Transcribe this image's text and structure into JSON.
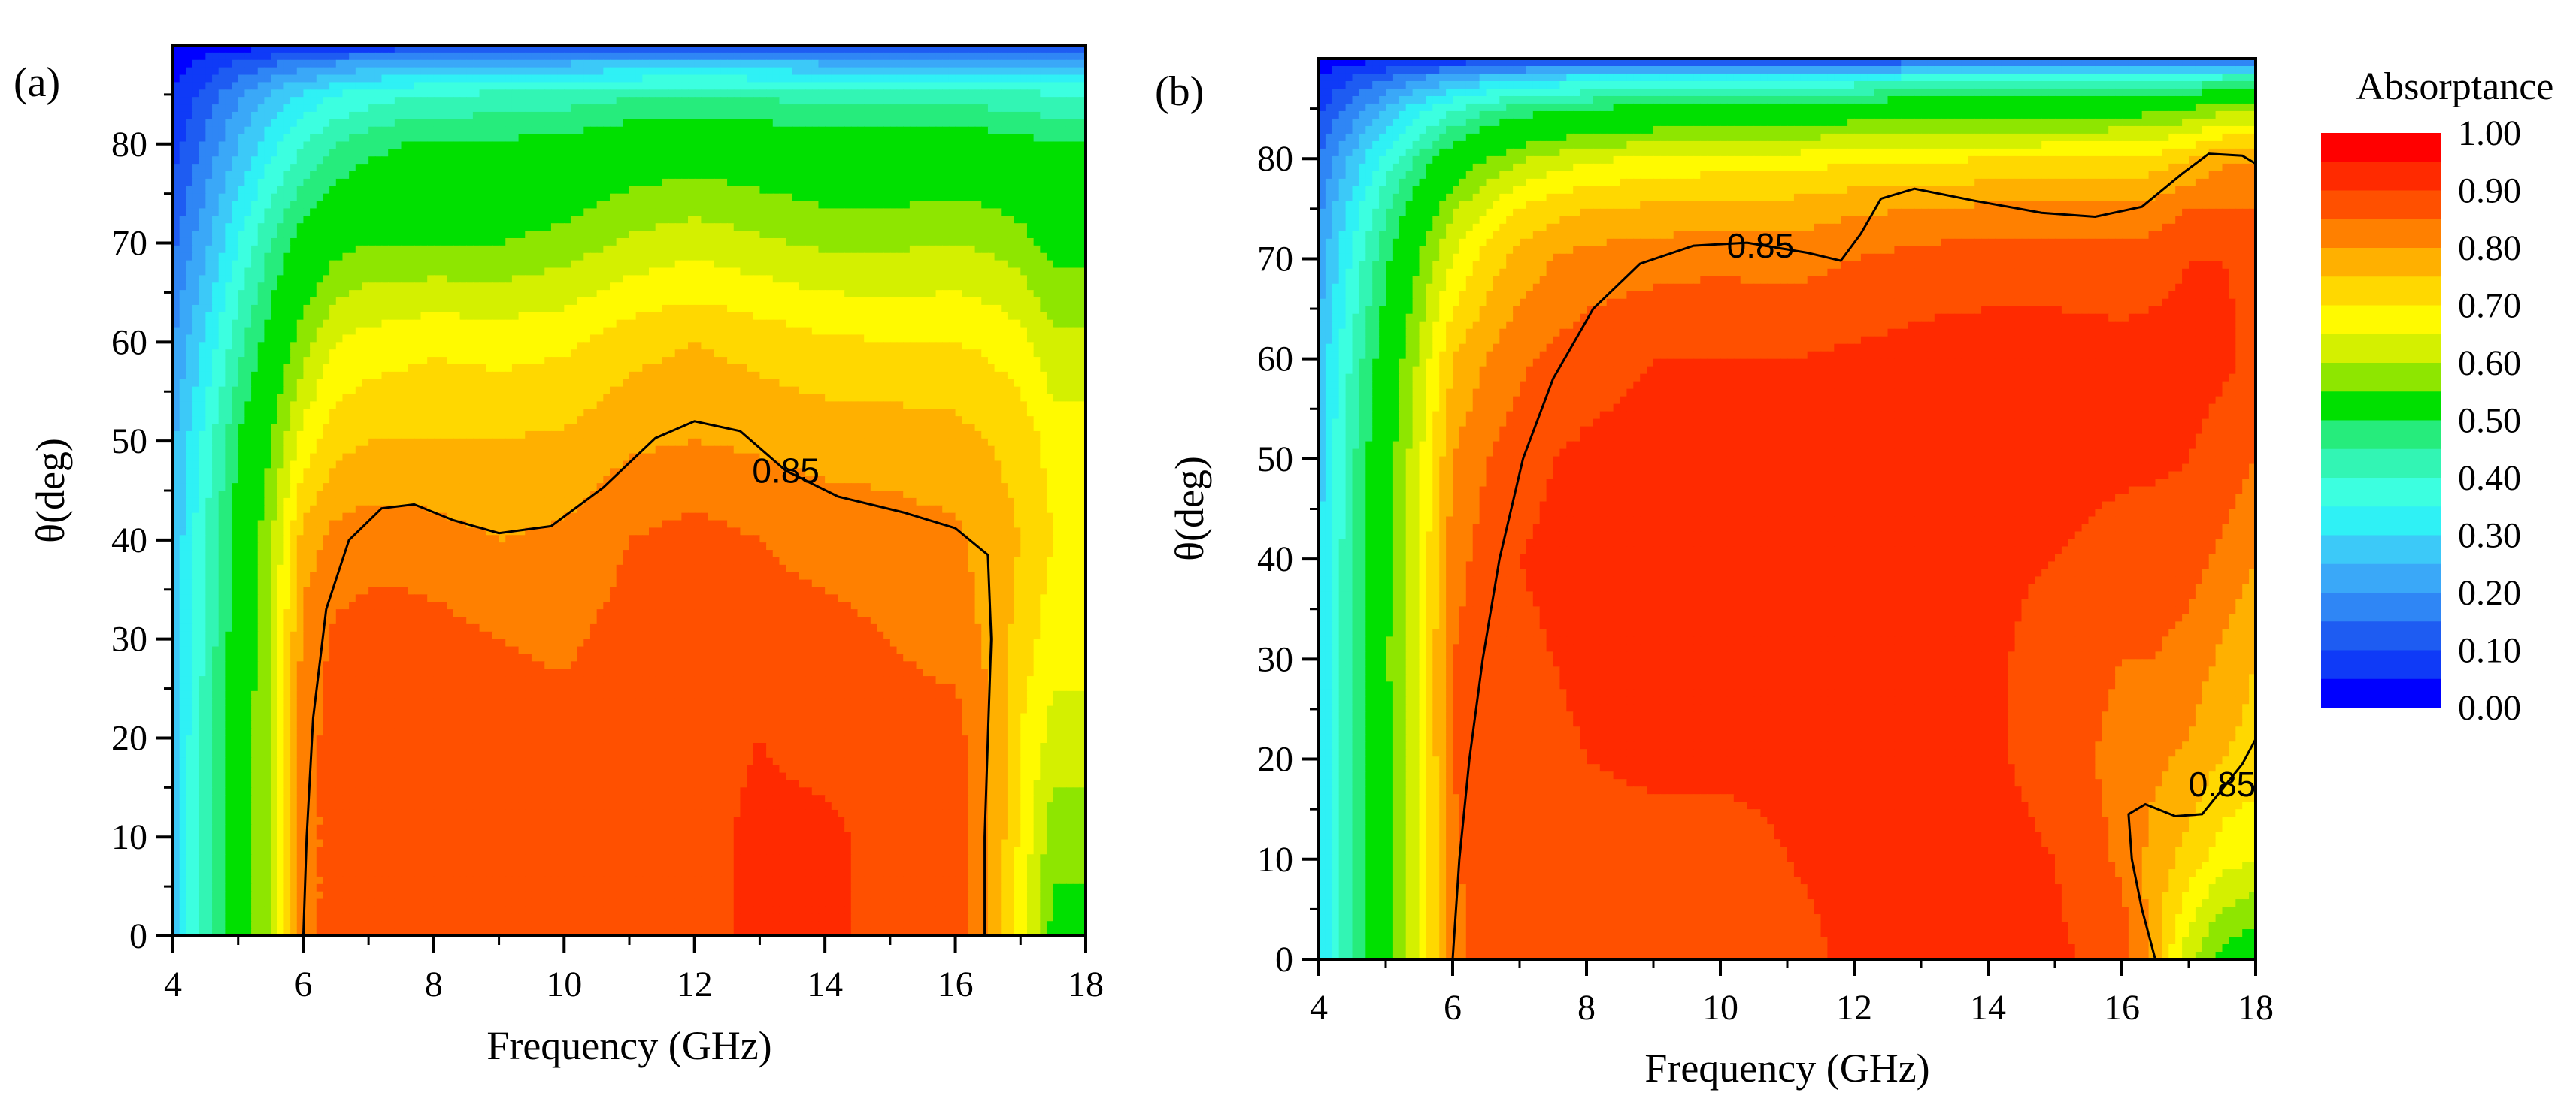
{
  "chart_data": [
    {
      "type": "heatmap",
      "panel_label": "(a)",
      "xlabel": "Frequency (GHz)",
      "ylabel": "θ(deg)",
      "xlim": [
        4,
        18
      ],
      "ylim": [
        0,
        90
      ],
      "xticks": [
        4,
        6,
        8,
        10,
        12,
        14,
        16,
        18
      ],
      "xtick_labels": [
        "4",
        "6",
        "8",
        "10",
        "12",
        "14",
        "16",
        "18"
      ],
      "yticks": [
        0,
        10,
        20,
        30,
        40,
        50,
        60,
        70,
        80
      ],
      "ytick_labels": [
        "0",
        "10",
        "20",
        "30",
        "40",
        "50",
        "60",
        "70",
        "80"
      ],
      "contour_level": 0.85,
      "contour_label": "0.85",
      "contour_label_pos": [
        13.4,
        47
      ],
      "contour_line": [
        [
          6.0,
          0
        ],
        [
          6.05,
          10
        ],
        [
          6.15,
          22
        ],
        [
          6.35,
          33
        ],
        [
          6.7,
          40
        ],
        [
          7.2,
          43.2
        ],
        [
          7.7,
          43.6
        ],
        [
          8.3,
          42
        ],
        [
          9.0,
          40.7
        ],
        [
          9.8,
          41.4
        ],
        [
          10.6,
          45.3
        ],
        [
          11.4,
          50.3
        ],
        [
          12.0,
          52
        ],
        [
          12.7,
          51
        ],
        [
          13.4,
          47
        ],
        [
          14.2,
          44.4
        ],
        [
          15.2,
          42.8
        ],
        [
          16.0,
          41.2
        ],
        [
          16.5,
          38.5
        ],
        [
          16.55,
          30
        ],
        [
          16.5,
          20
        ],
        [
          16.45,
          10
        ],
        [
          16.45,
          0
        ]
      ],
      "field": {
        "xs": [
          4,
          4.5,
          5,
          5.5,
          6,
          6.5,
          7,
          7.5,
          8,
          9,
          10,
          11,
          12,
          13,
          14,
          15,
          16,
          16.5,
          17,
          17.5,
          18
        ],
        "ys": [
          0,
          10,
          20,
          30,
          40,
          50,
          60,
          70,
          80,
          85,
          88,
          90
        ],
        "rows": [
          [
            0.28,
            0.42,
            0.55,
            0.66,
            0.88,
            0.92,
            0.92,
            0.92,
            0.92,
            0.92,
            0.92,
            0.92,
            0.92,
            0.97,
            0.97,
            0.92,
            0.92,
            0.86,
            0.72,
            0.58,
            0.58
          ],
          [
            0.28,
            0.42,
            0.55,
            0.66,
            0.88,
            0.92,
            0.92,
            0.92,
            0.92,
            0.92,
            0.92,
            0.92,
            0.92,
            0.97,
            0.97,
            0.92,
            0.92,
            0.86,
            0.74,
            0.62,
            0.62
          ],
          [
            0.28,
            0.42,
            0.55,
            0.66,
            0.88,
            0.92,
            0.92,
            0.92,
            0.92,
            0.92,
            0.92,
            0.92,
            0.92,
            0.95,
            0.92,
            0.92,
            0.92,
            0.86,
            0.75,
            0.68,
            0.68
          ],
          [
            0.27,
            0.41,
            0.54,
            0.65,
            0.87,
            0.91,
            0.92,
            0.92,
            0.92,
            0.9,
            0.89,
            0.92,
            0.92,
            0.92,
            0.92,
            0.9,
            0.88,
            0.84,
            0.78,
            0.72,
            0.72
          ],
          [
            0.26,
            0.4,
            0.53,
            0.64,
            0.82,
            0.87,
            0.88,
            0.88,
            0.87,
            0.85,
            0.86,
            0.9,
            0.92,
            0.9,
            0.88,
            0.87,
            0.86,
            0.83,
            0.8,
            0.75,
            0.75
          ],
          [
            0.24,
            0.37,
            0.5,
            0.6,
            0.72,
            0.78,
            0.8,
            0.8,
            0.8,
            0.8,
            0.81,
            0.84,
            0.85,
            0.84,
            0.83,
            0.83,
            0.82,
            0.8,
            0.78,
            0.73,
            0.73
          ],
          [
            0.2,
            0.31,
            0.43,
            0.53,
            0.63,
            0.7,
            0.72,
            0.73,
            0.74,
            0.73,
            0.74,
            0.78,
            0.8,
            0.78,
            0.76,
            0.75,
            0.75,
            0.74,
            0.72,
            0.66,
            0.66
          ],
          [
            0.14,
            0.24,
            0.35,
            0.45,
            0.53,
            0.58,
            0.6,
            0.6,
            0.6,
            0.6,
            0.62,
            0.66,
            0.68,
            0.66,
            0.64,
            0.64,
            0.65,
            0.64,
            0.62,
            0.58,
            0.58
          ],
          [
            0.08,
            0.16,
            0.25,
            0.33,
            0.4,
            0.45,
            0.48,
            0.5,
            0.51,
            0.51,
            0.52,
            0.55,
            0.56,
            0.55,
            0.53,
            0.53,
            0.54,
            0.53,
            0.52,
            0.5,
            0.5
          ],
          [
            0.05,
            0.12,
            0.19,
            0.26,
            0.31,
            0.35,
            0.37,
            0.39,
            0.4,
            0.41,
            0.42,
            0.44,
            0.45,
            0.44,
            0.43,
            0.43,
            0.43,
            0.42,
            0.42,
            0.4,
            0.4
          ],
          [
            0.03,
            0.07,
            0.11,
            0.15,
            0.18,
            0.21,
            0.23,
            0.24,
            0.25,
            0.25,
            0.26,
            0.27,
            0.28,
            0.27,
            0.26,
            0.26,
            0.26,
            0.26,
            0.25,
            0.24,
            0.24
          ],
          [
            0.01,
            0.02,
            0.03,
            0.04,
            0.05,
            0.06,
            0.06,
            0.07,
            0.07,
            0.07,
            0.08,
            0.08,
            0.08,
            0.08,
            0.08,
            0.08,
            0.08,
            0.07,
            0.07,
            0.07,
            0.07
          ]
        ]
      }
    },
    {
      "type": "heatmap",
      "panel_label": "(b)",
      "xlabel": "Frequency (GHz)",
      "ylabel": "θ(deg)",
      "xlim": [
        4,
        18
      ],
      "ylim": [
        0,
        90
      ],
      "xticks": [
        4,
        6,
        8,
        10,
        12,
        14,
        16,
        18
      ],
      "xtick_labels": [
        "4",
        "6",
        "8",
        "10",
        "12",
        "14",
        "16",
        "18"
      ],
      "yticks": [
        0,
        10,
        20,
        30,
        40,
        50,
        60,
        70,
        80
      ],
      "ytick_labels": [
        "0",
        "10",
        "20",
        "30",
        "40",
        "50",
        "60",
        "70",
        "80"
      ],
      "contour_level": 0.85,
      "contour_label": "0.85",
      "contour_label_pos": [
        10.6,
        71.3
      ],
      "contour_label_2": "0.85",
      "contour_label_2_pos": [
        17.5,
        17.5
      ],
      "contour_line": [
        [
          6.0,
          0
        ],
        [
          6.1,
          10
        ],
        [
          6.25,
          20
        ],
        [
          6.45,
          30
        ],
        [
          6.7,
          40
        ],
        [
          7.05,
          50
        ],
        [
          7.5,
          58
        ],
        [
          8.1,
          65
        ],
        [
          8.8,
          69.5
        ],
        [
          9.6,
          71.3
        ],
        [
          10.4,
          71.6
        ],
        [
          11.3,
          70.6
        ],
        [
          11.8,
          69.8
        ],
        [
          12.1,
          72.5
        ],
        [
          12.4,
          76
        ],
        [
          12.9,
          77
        ],
        [
          13.8,
          75.8
        ],
        [
          14.8,
          74.6
        ],
        [
          15.6,
          74.2
        ],
        [
          16.3,
          75.2
        ],
        [
          16.9,
          78.5
        ],
        [
          17.3,
          80.5
        ],
        [
          17.8,
          80.3
        ],
        [
          18.0,
          79.5
        ]
      ],
      "contour_line_2": [
        [
          16.5,
          0
        ],
        [
          16.3,
          5
        ],
        [
          16.15,
          10
        ],
        [
          16.1,
          14.5
        ],
        [
          16.35,
          15.5
        ],
        [
          16.8,
          14.3
        ],
        [
          17.2,
          14.5
        ],
        [
          17.5,
          17
        ],
        [
          17.8,
          19.5
        ],
        [
          18.0,
          22
        ]
      ],
      "field": {
        "xs": [
          4,
          4.5,
          5,
          5.5,
          6,
          6.5,
          7,
          7.5,
          8,
          9,
          10,
          11,
          12,
          13,
          14,
          15,
          16,
          16.5,
          17,
          17.5,
          18
        ],
        "ys": [
          0,
          10,
          20,
          30,
          40,
          50,
          60,
          70,
          75,
          80,
          85,
          88,
          90
        ],
        "rows": [
          [
            0.3,
            0.46,
            0.58,
            0.7,
            0.88,
            0.93,
            0.93,
            0.93,
            0.93,
            0.93,
            0.93,
            0.93,
            0.96,
            0.97,
            0.97,
            0.96,
            0.93,
            0.82,
            0.66,
            0.58,
            0.55
          ],
          [
            0.3,
            0.46,
            0.58,
            0.7,
            0.89,
            0.93,
            0.93,
            0.93,
            0.93,
            0.93,
            0.93,
            0.95,
            0.97,
            0.97,
            0.97,
            0.95,
            0.89,
            0.83,
            0.78,
            0.72,
            0.7
          ],
          [
            0.3,
            0.46,
            0.58,
            0.7,
            0.9,
            0.93,
            0.93,
            0.94,
            0.95,
            0.96,
            0.96,
            0.96,
            0.97,
            0.97,
            0.96,
            0.93,
            0.88,
            0.86,
            0.84,
            0.8,
            0.78
          ],
          [
            0.3,
            0.46,
            0.59,
            0.71,
            0.9,
            0.93,
            0.94,
            0.95,
            0.96,
            0.97,
            0.97,
            0.97,
            0.97,
            0.97,
            0.96,
            0.93,
            0.9,
            0.9,
            0.88,
            0.84,
            0.8
          ],
          [
            0.29,
            0.45,
            0.58,
            0.7,
            0.88,
            0.92,
            0.95,
            0.96,
            0.97,
            0.97,
            0.97,
            0.97,
            0.97,
            0.97,
            0.96,
            0.95,
            0.93,
            0.92,
            0.92,
            0.89,
            0.85
          ],
          [
            0.28,
            0.44,
            0.57,
            0.69,
            0.85,
            0.9,
            0.93,
            0.95,
            0.96,
            0.97,
            0.97,
            0.97,
            0.97,
            0.97,
            0.97,
            0.97,
            0.96,
            0.96,
            0.95,
            0.93,
            0.9
          ],
          [
            0.26,
            0.41,
            0.54,
            0.66,
            0.8,
            0.85,
            0.89,
            0.91,
            0.93,
            0.95,
            0.95,
            0.95,
            0.96,
            0.97,
            0.97,
            0.97,
            0.97,
            0.97,
            0.97,
            0.96,
            0.94
          ],
          [
            0.22,
            0.36,
            0.49,
            0.6,
            0.7,
            0.77,
            0.82,
            0.85,
            0.87,
            0.88,
            0.89,
            0.88,
            0.9,
            0.92,
            0.93,
            0.93,
            0.92,
            0.93,
            0.95,
            0.95,
            0.94
          ],
          [
            0.19,
            0.32,
            0.44,
            0.55,
            0.64,
            0.7,
            0.75,
            0.78,
            0.8,
            0.81,
            0.82,
            0.82,
            0.84,
            0.85,
            0.86,
            0.86,
            0.86,
            0.87,
            0.9,
            0.9,
            0.9
          ],
          [
            0.15,
            0.26,
            0.37,
            0.46,
            0.55,
            0.6,
            0.64,
            0.67,
            0.69,
            0.71,
            0.72,
            0.72,
            0.74,
            0.74,
            0.75,
            0.75,
            0.76,
            0.77,
            0.8,
            0.84,
            0.84
          ],
          [
            0.09,
            0.17,
            0.25,
            0.33,
            0.39,
            0.44,
            0.47,
            0.49,
            0.5,
            0.52,
            0.53,
            0.53,
            0.55,
            0.56,
            0.56,
            0.57,
            0.57,
            0.58,
            0.6,
            0.63,
            0.64
          ],
          [
            0.05,
            0.1,
            0.15,
            0.2,
            0.24,
            0.27,
            0.29,
            0.31,
            0.32,
            0.33,
            0.34,
            0.35,
            0.36,
            0.37,
            0.37,
            0.38,
            0.38,
            0.39,
            0.4,
            0.42,
            0.43
          ],
          [
            0.02,
            0.03,
            0.04,
            0.05,
            0.06,
            0.07,
            0.08,
            0.08,
            0.09,
            0.09,
            0.09,
            0.1,
            0.1,
            0.1,
            0.11,
            0.11,
            0.11,
            0.11,
            0.12,
            0.12,
            0.12
          ]
        ]
      }
    }
  ],
  "legend": {
    "title": "Absorptance",
    "levels": [
      0.0,
      0.05,
      0.1,
      0.15,
      0.2,
      0.25,
      0.3,
      0.35,
      0.4,
      0.45,
      0.5,
      0.6,
      0.65,
      0.7,
      0.75,
      0.8,
      0.85,
      0.9,
      0.95,
      1.0
    ],
    "colors": [
      "#0000ff",
      "#0f3af7",
      "#1e5cf2",
      "#2f86f5",
      "#3aa8f8",
      "#3cc9f8",
      "#2ff1f5",
      "#3cffe0",
      "#32f5b4",
      "#26ec7c",
      "#00e000",
      "#8ee600",
      "#d4f000",
      "#fffa00",
      "#ffd800",
      "#ffb000",
      "#ff8000",
      "#ff5000",
      "#ff2a00",
      "#ff0000"
    ],
    "tick_labels": [
      "1.00",
      "0.90",
      "0.80",
      "0.70",
      "0.60",
      "0.50",
      "0.40",
      "0.30",
      "0.20",
      "0.10",
      "0.00"
    ]
  }
}
